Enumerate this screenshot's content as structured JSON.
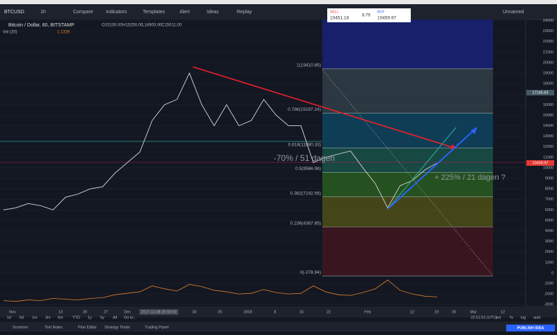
{
  "toolbar": {
    "symbol": "BTCUSD",
    "interval": "1h",
    "buttons": [
      "Compare",
      "Indicators",
      "Templates",
      "Alert",
      "Ideas",
      "Replay"
    ],
    "layout_name": "Unnamed"
  },
  "trade": {
    "sell_label": "SELL",
    "sell_price": "10451.18",
    "spread": "8.79",
    "buy_label": "BUY",
    "buy_price": "10459.97"
  },
  "legend": {
    "title": "Bitcoin / Dollar, 60, BITSTAMP",
    "ohlc": [
      "O15100.00",
      "H15250.00",
      "L14900.00",
      "C15011.00"
    ],
    "volume_label": "Vol (20)",
    "volume_value": "1.132K"
  },
  "chart": {
    "ylim": [
      -3180,
      24100
    ],
    "yticks": [
      -3000,
      -2000,
      -1000,
      0,
      1000,
      2000,
      3000,
      4000,
      5000,
      6000,
      7000,
      8000,
      9000,
      10000,
      11000,
      12000,
      13000,
      14000,
      15000,
      16000,
      17000,
      18000,
      19000,
      20000,
      21000,
      22000,
      23000,
      24000
    ],
    "price_labels": [
      17145.63,
      10459.97
    ],
    "fib_levels": [
      {
        "label": "1(19410.85)",
        "value": 19410.85
      },
      {
        "label": "0.786(15197.24)",
        "value": 15197.24
      },
      {
        "label": "0.618(11880.33)",
        "value": 11880.33
      },
      {
        "label": "0.5(9566.96)",
        "value": 9566.96
      },
      {
        "label": "0.382(7242.56)",
        "value": 7242.56
      },
      {
        "label": "0.236(4367.85)",
        "value": 4367.85
      },
      {
        "label": "0(-278.94)",
        "value": -278.94
      }
    ],
    "x_labels": [
      "Nov",
      "13",
      "20",
      "27",
      "Dec",
      "2017-12-08 20:00:00",
      "18",
      "25",
      "2018",
      "8",
      "15",
      "22",
      "Feb",
      "12",
      "19",
      "26",
      "Mar",
      "12"
    ],
    "annotations": [
      "-70% / 51 dagen",
      "+ 225% / 21 dagen ?"
    ],
    "price": [
      6000,
      6200,
      6600,
      6400,
      6000,
      7200,
      7500,
      8000,
      8200,
      9500,
      10500,
      11500,
      14500,
      16000,
      16500,
      19000,
      16000,
      14000,
      16000,
      14000,
      14500,
      16500,
      15000,
      14000,
      14000,
      10500,
      11000,
      11300,
      11600,
      10000,
      8500,
      6200,
      8300,
      8800,
      9800,
      10460
    ],
    "volume": [
      0.6,
      0.5,
      0.7,
      0.6,
      0.9,
      0.8,
      0.7,
      0.9,
      1.0,
      1.4,
      1.6,
      1.8,
      2.6,
      2.2,
      1.9,
      2.8,
      2.5,
      2.0,
      1.8,
      1.5,
      1.6,
      2.1,
      1.7,
      1.5,
      1.6,
      2.6,
      1.8,
      1.4,
      1.3,
      1.7,
      2.2,
      3.4,
      2.0,
      1.5,
      1.2,
      1.1
    ]
  },
  "range_bar": {
    "buttons": [
      "1d",
      "5d",
      "1m",
      "3m",
      "6m",
      "YTD",
      "1y",
      "5y",
      "All"
    ],
    "goto": "Go to...",
    "time": "22:51:52 (UTC)",
    "options": [
      "ext",
      "%",
      "log",
      "auto"
    ]
  },
  "footer": {
    "tabs": [
      "Screener",
      "Text Notes",
      "Pine Editor",
      "Strategy Tester",
      "Trading Panel"
    ],
    "publish": "PUBLISH IDEA"
  }
}
